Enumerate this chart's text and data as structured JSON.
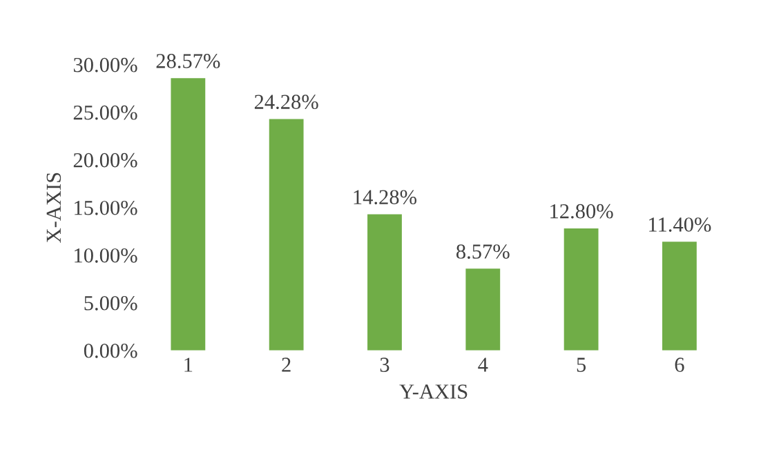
{
  "chart_data": {
    "type": "bar",
    "xlabel": "Y-AXIS",
    "ylabel": "X-AXIS",
    "categories": [
      "1",
      "2",
      "3",
      "4",
      "5",
      "6"
    ],
    "values": [
      28.57,
      24.28,
      14.28,
      8.57,
      12.8,
      11.4
    ],
    "value_labels": [
      "28.57%",
      "24.28%",
      "14.28%",
      "8.57%",
      "12.80%",
      "11.40%"
    ],
    "color": "#70ad47",
    "ylim": [
      0,
      30
    ],
    "yticks": [
      {
        "value": 0,
        "label": "0.00%"
      },
      {
        "value": 5,
        "label": "5.00%"
      },
      {
        "value": 10,
        "label": "10.00%"
      },
      {
        "value": 15,
        "label": "15.00%"
      },
      {
        "value": 20,
        "label": "20.00%"
      },
      {
        "value": 25,
        "label": "25.00%"
      },
      {
        "value": 30,
        "label": "30.00%"
      }
    ],
    "grid": false,
    "legend": false
  }
}
